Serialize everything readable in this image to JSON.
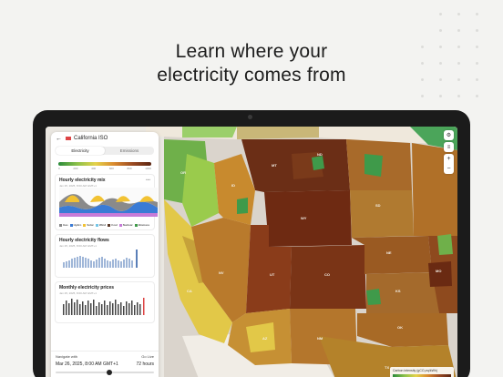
{
  "headline": {
    "line1": "Learn where your",
    "line2": "electricity comes from"
  },
  "panel": {
    "title": "California ISO",
    "tabs": [
      {
        "label": "Electricity",
        "active": true
      },
      {
        "label": "Emissions",
        "active": false
      }
    ],
    "carbon_ticks": [
      "0",
      "200",
      "400",
      "600",
      "800",
      "1000"
    ],
    "mix_card": {
      "title": "Hourly electricity mix",
      "subtitle": "Jan 25, 2025, 8:00 AM GMT+1"
    },
    "mix_legend": [
      {
        "label": "Gas",
        "color": "#8a8a8a"
      },
      {
        "label": "Hydro",
        "color": "#3a7bd5"
      },
      {
        "label": "Solar",
        "color": "#f2c233"
      },
      {
        "label": "Wind",
        "color": "#74c6e8"
      },
      {
        "label": "Coal",
        "color": "#5a3a2a"
      },
      {
        "label": "Nuclear",
        "color": "#c77bd8"
      },
      {
        "label": "Biomass",
        "color": "#3f9a4a"
      }
    ],
    "flows_card": {
      "title": "Hourly electricity flows",
      "subtitle": "Jan 25, 2025, 8:00 AM GMT+1"
    },
    "prices_card": {
      "title": "Monthly electricity prices",
      "subtitle": "Jan 25, 2025, 8:00 AM GMT+1"
    },
    "navigator": {
      "label": "Navigate with",
      "badge": "Go Live",
      "date": "Mar 26, 2025, 8:00 AM GMT+1",
      "window": "72 hours",
      "progress": 0.55
    }
  },
  "map": {
    "states": [
      "ND",
      "MT",
      "WY",
      "SD",
      "NE",
      "KS",
      "UT",
      "NV",
      "CO",
      "MO",
      "OK",
      "AZ",
      "NM",
      "TX",
      "CA",
      "ID",
      "OR"
    ]
  },
  "scale_legend": {
    "title": "Carbon intensity (gCO₂eq/kWh)",
    "ticks": [
      "0",
      "150",
      "300",
      "450",
      "600",
      "750",
      "900",
      "1050"
    ]
  }
}
